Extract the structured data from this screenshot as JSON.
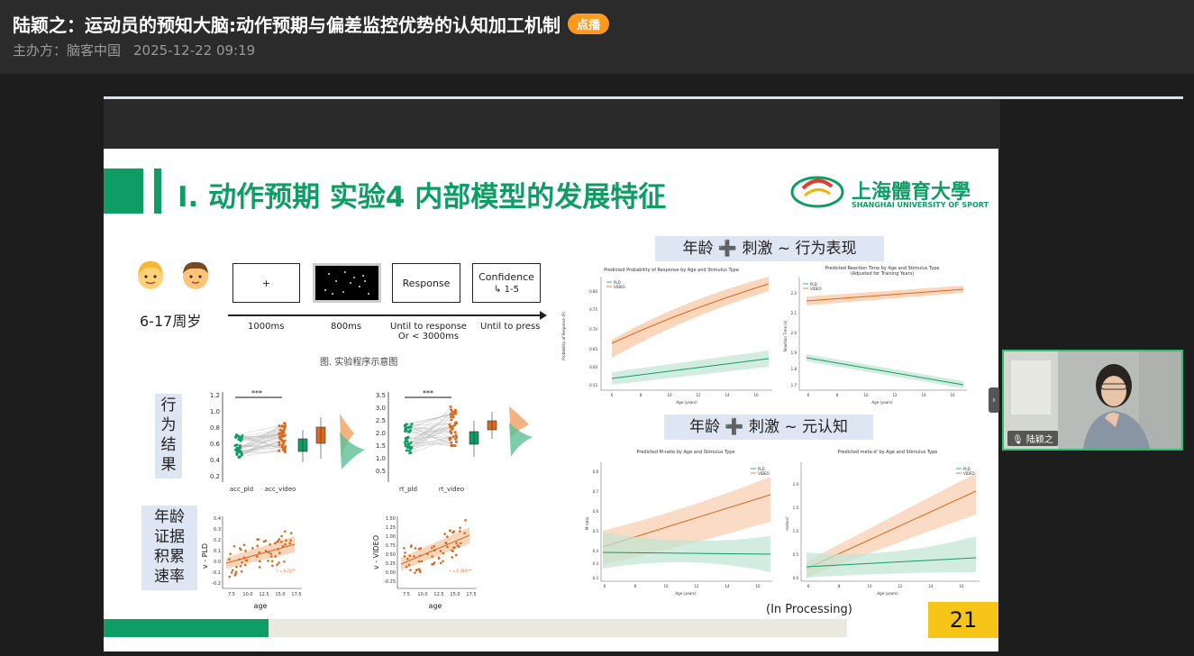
{
  "header": {
    "title": "陆颖之：运动员的预知大脑:动作预期与偏差监控优势的认知加工机制",
    "badge": "点播",
    "organizer": "主办方：脑客中国",
    "datetime": "2025-12-22 09:19"
  },
  "slide": {
    "title": "I. 动作预期 实验4 内部模型的发展特征",
    "logo_cn": "上海體育大學",
    "logo_en": "SHANGHAI UNIVERSITY OF SPORT",
    "age_range": "6-17周岁",
    "trial_boxes": [
      "+",
      "",
      "Response",
      "Confidence"
    ],
    "confidence_scale": "1-5",
    "timeline": [
      "1000ms",
      "800ms",
      "Until to response",
      "Or < 3000ms",
      "Until to press"
    ],
    "caption": "图. 实验程序示意图",
    "behavior_label": [
      "行",
      "为",
      "结",
      "果"
    ],
    "age_label": [
      "年龄",
      "证据",
      "积累",
      "速率"
    ],
    "behav_plot_a": {
      "ticks": [
        "1.2",
        "1.0",
        "0.8",
        "0.6",
        "0.4",
        "0.2"
      ],
      "x": [
        "acc_pld",
        "acc_video"
      ],
      "sig": "***"
    },
    "behav_plot_b": {
      "ticks": [
        "3.5",
        "3.0",
        "2.5",
        "2.0",
        "1.5",
        "1.0",
        "0.5"
      ],
      "x": [
        "rt_pld",
        "rt_video"
      ],
      "sig": "***"
    },
    "scatter_a": {
      "ylabel": "v - PLD",
      "xlabel": "age",
      "xticks": [
        "7.5",
        "10.0",
        "12.5",
        "15.0",
        "17.5"
      ],
      "yticks": [
        "0.4",
        "0.3",
        "0.2",
        "0.1",
        "0.0",
        "-0.1",
        "-0.2"
      ],
      "stat": "r = 0.217*"
    },
    "scatter_b": {
      "ylabel": "v - VIDEO",
      "xlabel": "age",
      "xticks": [
        "7.5",
        "10.0",
        "12.5",
        "15.0",
        "17.5"
      ],
      "yticks": [
        "1.50",
        "1.25",
        "1.00",
        "0.75",
        "0.50",
        "0.25",
        "0.00",
        "-0.25"
      ],
      "stat": "r = 0.350***"
    },
    "section1": "年龄 ➕ 刺激 ~ 行为表现",
    "section2": "年龄 ➕ 刺激 ~ 元认知",
    "plot1": {
      "title": "Predicted Probability of Response by Age and Stimulus Type",
      "ylabel": "Probability of Response (P)",
      "xlabel": "Age (years)",
      "legend": [
        "PLD",
        "VIDEO"
      ],
      "yticks": [
        "0.80",
        "0.75",
        "0.70",
        "0.65",
        "0.60",
        "0.55"
      ],
      "xticks": [
        "6",
        "8",
        "10",
        "12",
        "14",
        "16"
      ]
    },
    "plot2": {
      "title": "Predicted Reaction Time by Age and Stimulus Type",
      "subtitle": "(Adjusted for Training Years)",
      "ylabel": "Reaction Time (s)",
      "xlabel": "Age (years)",
      "legend": [
        "PLD",
        "VIDEO"
      ],
      "yticks": [
        "2.2",
        "2.1",
        "2.0",
        "1.9",
        "1.8",
        "1.7"
      ],
      "xticks": [
        "6",
        "8",
        "10",
        "12",
        "14",
        "16"
      ]
    },
    "plot3": {
      "title": "Predicted M-ratio by Age and Stimulus Type",
      "ylabel": "M-ratio",
      "xlabel": "Age (years)",
      "legend": [
        "PLD",
        "VIDEO"
      ],
      "yticks": [
        "0.8",
        "0.7",
        "0.6",
        "0.5",
        "0.4",
        "0.3",
        "0.2"
      ],
      "xticks": [
        "6",
        "8",
        "10",
        "12",
        "14",
        "16"
      ]
    },
    "plot4": {
      "title": "Predicted meta-d' by Age and Stimulus Type",
      "ylabel": "meta-d'",
      "xlabel": "Age (years)",
      "legend": [
        "PLD",
        "VIDEO"
      ],
      "yticks": [
        "2.0",
        "1.5",
        "1.0",
        "0.5",
        "0.0"
      ],
      "xticks": [
        "6",
        "8",
        "10",
        "12",
        "14",
        "16"
      ]
    },
    "in_processing": "(In Processing)",
    "page": "21"
  },
  "video": {
    "name": "陆颖之"
  },
  "colors": {
    "green": "#0f9d66",
    "orange": "#d9691c",
    "badge": "#ff9a1f",
    "yellow": "#f7c51a"
  }
}
